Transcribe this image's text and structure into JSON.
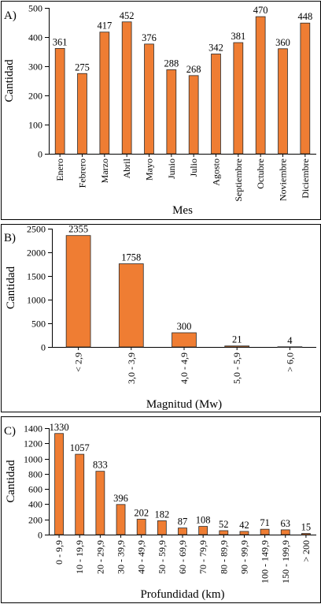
{
  "chart_data": [
    {
      "type": "bar",
      "panel": "A)",
      "xlabel": "Mes",
      "ylabel": "Cantidad",
      "ylim": [
        0,
        500
      ],
      "yticks": [
        0,
        100,
        200,
        300,
        400,
        500
      ],
      "categories": [
        "Enero",
        "Febrero",
        "Marzo",
        "Abril",
        "Mayo",
        "Junio",
        "Julio",
        "Agosto",
        "Septiembre",
        "Octubre",
        "Noviembre",
        "Diciembre"
      ],
      "values": [
        361,
        275,
        417,
        452,
        376,
        288,
        268,
        342,
        381,
        470,
        360,
        448
      ],
      "color": "#ef7d33",
      "grid": false
    },
    {
      "type": "bar",
      "panel": "B)",
      "xlabel": "Magnitud (Mw)",
      "ylabel": "Cantidad",
      "ylim": [
        0,
        2500
      ],
      "yticks": [
        0,
        500,
        1000,
        1500,
        2000,
        2500
      ],
      "categories": [
        "< 2,9",
        "3,0 - 3,9",
        "4,0 - 4,9",
        "5,0 - 5,9",
        "> 6,0"
      ],
      "values": [
        2355,
        1758,
        300,
        21,
        4
      ],
      "color": "#ef7d33",
      "grid": false
    },
    {
      "type": "bar",
      "panel": "C)",
      "xlabel": "Profundidad (km)",
      "ylabel": "Cantidad",
      "ylim": [
        0,
        1400
      ],
      "yticks": [
        0,
        200,
        400,
        600,
        800,
        1000,
        1200,
        1400
      ],
      "categories": [
        "0 - 9,9",
        "10 - 19,9",
        "20 - 29,9",
        "30 - 39,9",
        "40 - 49,9",
        "50 - 59,9",
        "60 - 69,9",
        "70 - 79,9",
        "80 - 89,9",
        "90 - 99,9",
        "100 - 149,9",
        "150 - 199,9",
        "> 200"
      ],
      "values": [
        1330,
        1057,
        833,
        396,
        202,
        182,
        87,
        108,
        52,
        42,
        71,
        63,
        15
      ],
      "color": "#ef7d33",
      "grid": false
    }
  ]
}
